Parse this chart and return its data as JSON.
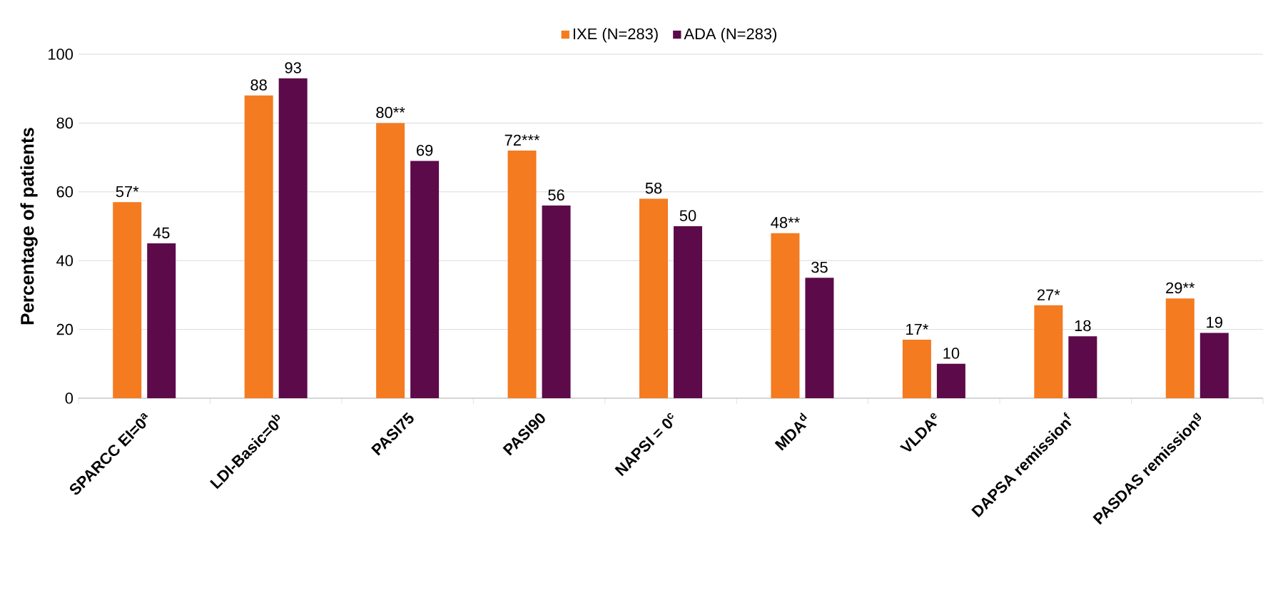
{
  "chart_data": {
    "type": "bar",
    "ylabel": "Percentage of patients",
    "categories": [
      "SPARCC EI=0$^{a}$",
      "LDI-Basic=0$^{b}$",
      "PASI75",
      "PASI90",
      "NAPSI = 0$^{c}$",
      "MDA$^{d}$",
      "VLDA$^{e}$",
      "DAPSA remission$^{f}$",
      "PASDAS remission$^{g}$"
    ],
    "series": [
      {
        "name": "IXE (N=283)",
        "color": "#f47b20",
        "values": [
          57,
          88,
          80,
          72,
          58,
          48,
          17,
          27,
          29
        ],
        "value_labels": [
          "57*",
          "88",
          "80**",
          "72***",
          "58",
          "48**",
          "17*",
          "27*",
          "29**"
        ]
      },
      {
        "name": "ADA (N=283)",
        "color": "#5c0a4a",
        "values": [
          45,
          93,
          69,
          56,
          50,
          35,
          10,
          18,
          19
        ],
        "value_labels": [
          "45",
          "93",
          "69",
          "56",
          "50",
          "35",
          "10",
          "18",
          "19"
        ]
      }
    ],
    "ylim": [
      0,
      100
    ],
    "yticks": [
      0,
      20,
      40,
      60,
      80,
      100
    ],
    "grid": "y",
    "legend": "top"
  }
}
